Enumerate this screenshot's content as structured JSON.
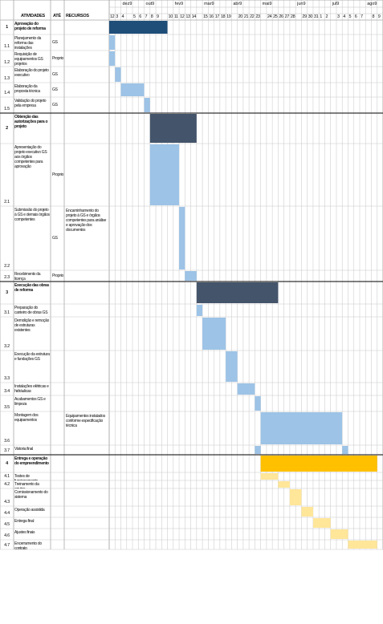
{
  "header": {
    "col_id": "ATIVIDADES",
    "col_ate": "ATÉ",
    "col_fim": "RECURSOS"
  },
  "months": [
    "dez9",
    "out9",
    "fev9",
    "mar9",
    "abr9",
    "mai9",
    "jun9",
    "jul9",
    "ago9"
  ],
  "days": [
    "12",
    "3",
    "4",
    "5",
    "6",
    "7",
    "8",
    "9",
    "10",
    "11",
    "12",
    "13",
    "14",
    "15",
    "16",
    "17",
    "18",
    "19",
    "20",
    "21",
    "22",
    "23",
    "24",
    "25",
    "26",
    "27",
    "28",
    "29",
    "30",
    "31",
    "1",
    "2",
    "3",
    "4",
    "5",
    "6",
    "7",
    "8",
    "9"
  ],
  "rows": [
    {
      "id": "1",
      "task": "Aprovação do projeto de reforma",
      "res": "",
      "notes": ""
    },
    {
      "id": "1.1",
      "task": "Planejamento da reforma das instalações",
      "res": "GS",
      "notes": ""
    },
    {
      "id": "1.2",
      "task": "Requisição de equipamentos GS projetos",
      "res": "Proprio",
      "notes": ""
    },
    {
      "id": "1.3",
      "task": "Elaboração do projeto executivo",
      "res": "GS",
      "notes": ""
    },
    {
      "id": "1.4",
      "task": "Elaboração da proposta técnica",
      "res": "GS",
      "notes": ""
    },
    {
      "id": "1.5",
      "task": "Validação do projeto pela empresa",
      "res": "GS",
      "notes": ""
    },
    {
      "id": "2",
      "task": "Obtenção das autorizações para o projeto",
      "res": "",
      "notes": ""
    },
    {
      "id": "2.1",
      "task": "Apresentação do projeto executivo GS aos órgãos competentes para aprovação",
      "res": "Proprio",
      "notes": ""
    },
    {
      "id": "2.2",
      "task": "Submissão do projeto à GS e demais órgãos competentes",
      "res": "GS",
      "notes": "Encaminhamento do projeto à GS e órgãos competentes para análise e aprovação dos documentos"
    },
    {
      "id": "2.3",
      "task": "Recebimento da licença",
      "res": "Proprio",
      "notes": ""
    },
    {
      "id": "3",
      "task": "Execução das obras de reforma",
      "res": "",
      "notes": ""
    },
    {
      "id": "3.1",
      "task": "Preparação do canteiro de obras GS",
      "res": "",
      "notes": ""
    },
    {
      "id": "3.2",
      "task": "Demolição e remoção de estruturas existentes",
      "res": "",
      "notes": ""
    },
    {
      "id": "3.3",
      "task": "Execução da estrutura e fundações GS",
      "res": "",
      "notes": ""
    },
    {
      "id": "3.4",
      "task": "Instalações elétricas e hidráulicas",
      "res": "",
      "notes": ""
    },
    {
      "id": "3.5",
      "task": "Acabamentos GS e limpeza",
      "res": "",
      "notes": ""
    },
    {
      "id": "3.6",
      "task": "Montagem dos equipamentos",
      "res": "",
      "notes": "Equipamentos instalados conforme especificação técnica"
    },
    {
      "id": "3.7",
      "task": "Vistoria final",
      "res": "",
      "notes": ""
    },
    {
      "id": "4",
      "task": "Entrega e operação do empreendimento",
      "res": "",
      "notes": ""
    },
    {
      "id": "4.1",
      "task": "Testes de funcionamento",
      "res": "",
      "notes": ""
    },
    {
      "id": "4.2",
      "task": "Treinamento da equipe",
      "res": "",
      "notes": ""
    },
    {
      "id": "4.3",
      "task": "Comissionamento do sistema",
      "res": "",
      "notes": ""
    },
    {
      "id": "4.4",
      "task": "Operação assistida",
      "res": "",
      "notes": ""
    },
    {
      "id": "4.5",
      "task": "Entrega final",
      "res": "",
      "notes": ""
    },
    {
      "id": "4.6",
      "task": "Ajustes finais",
      "res": "",
      "notes": ""
    },
    {
      "id": "4.7",
      "task": "Encerramento do contrato",
      "res": "",
      "notes": ""
    }
  ],
  "bars": [
    {
      "row": 0,
      "start": 0,
      "end": 10,
      "color": "#1f4e79"
    },
    {
      "row": 1,
      "start": 0,
      "end": 1,
      "color": "#9dc3e6"
    },
    {
      "row": 2,
      "start": 0,
      "end": 1,
      "color": "#9dc3e6"
    },
    {
      "row": 3,
      "start": 1,
      "end": 2,
      "color": "#9dc3e6"
    },
    {
      "row": 4,
      "start": 2,
      "end": 6,
      "color": "#9dc3e6"
    },
    {
      "row": 5,
      "start": 6,
      "end": 7,
      "color": "#9dc3e6"
    },
    {
      "row": 6,
      "start": 7,
      "end": 15,
      "color": "#44546a"
    },
    {
      "row": 7,
      "start": 7,
      "end": 12,
      "color": "#9dc3e6"
    },
    {
      "row": 8,
      "start": 12,
      "end": 13,
      "color": "#9dc3e6"
    },
    {
      "row": 9,
      "start": 13,
      "end": 15,
      "color": "#9dc3e6"
    },
    {
      "row": 10,
      "start": 15,
      "end": 29,
      "color": "#44546a"
    },
    {
      "row": 11,
      "start": 15,
      "end": 16,
      "color": "#9dc3e6"
    },
    {
      "row": 12,
      "start": 16,
      "end": 20,
      "color": "#9dc3e6"
    },
    {
      "row": 13,
      "start": 20,
      "end": 22,
      "color": "#9dc3e6"
    },
    {
      "row": 14,
      "start": 22,
      "end": 25,
      "color": "#9dc3e6"
    },
    {
      "row": 15,
      "start": 25,
      "end": 26,
      "color": "#9dc3e6"
    },
    {
      "row": 16,
      "start": 26,
      "end": 40,
      "color": "#9dc3e6"
    },
    {
      "row": 17,
      "start": 25,
      "end": 26,
      "color": "#9dc3e6"
    },
    {
      "row": 17,
      "start": 40,
      "end": 41,
      "color": "#9dc3e6"
    },
    {
      "row": 18,
      "start": 26,
      "end": 46,
      "color": "#ffc000"
    },
    {
      "row": 19,
      "start": 26,
      "end": 29,
      "color": "#ffe699"
    },
    {
      "row": 20,
      "start": 29,
      "end": 31,
      "color": "#ffe699"
    },
    {
      "row": 21,
      "start": 31,
      "end": 33,
      "color": "#ffe699"
    },
    {
      "row": 22,
      "start": 33,
      "end": 35,
      "color": "#ffe699"
    },
    {
      "row": 23,
      "start": 35,
      "end": 38,
      "color": "#ffe699"
    },
    {
      "row": 24,
      "start": 38,
      "end": 41,
      "color": "#ffe699"
    },
    {
      "row": 25,
      "start": 41,
      "end": 46,
      "color": "#ffe699"
    }
  ]
}
